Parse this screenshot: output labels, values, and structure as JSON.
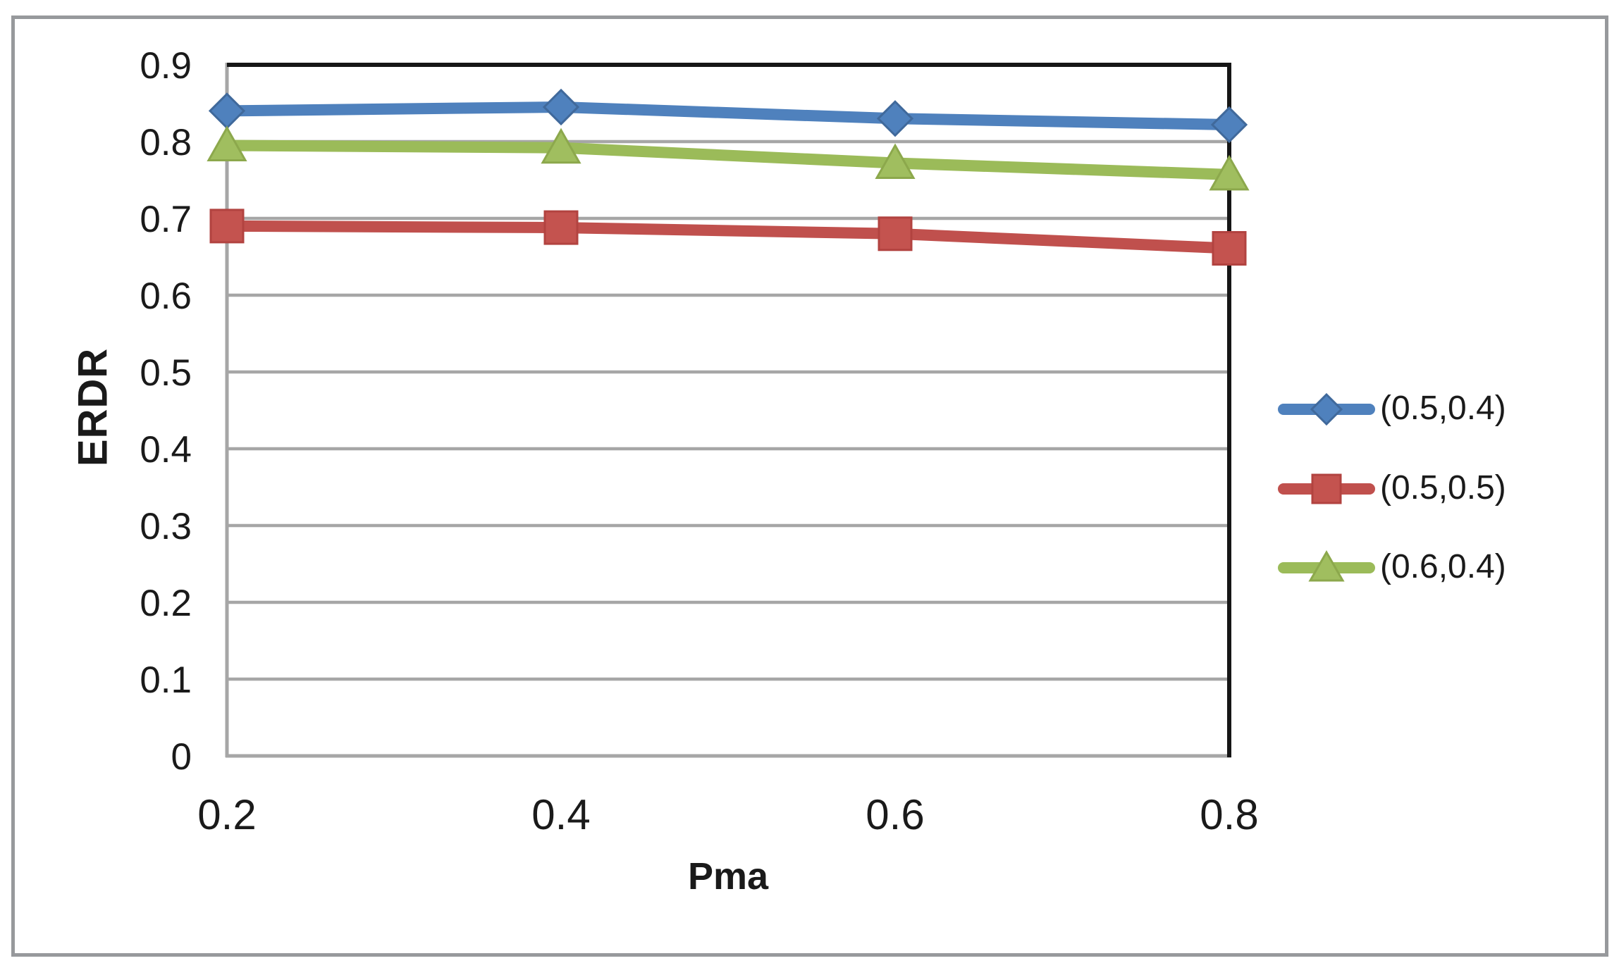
{
  "figure": {
    "background": "#ffffff",
    "frame_border_color": "#97999c"
  },
  "chart_data": {
    "type": "line",
    "title": "",
    "xlabel": "Pma",
    "ylabel": "ERDR",
    "x": [
      0.2,
      0.4,
      0.6,
      0.8
    ],
    "x_tick_labels": [
      "0.2",
      "0.4",
      "0.6",
      "0.8"
    ],
    "y_tick_labels": [
      "0",
      "0.1",
      "0.2",
      "0.3",
      "0.4",
      "0.5",
      "0.6",
      "0.7",
      "0.8",
      "0.9"
    ],
    "y_ticks": [
      0,
      0.1,
      0.2,
      0.3,
      0.4,
      0.5,
      0.6,
      0.7,
      0.8,
      0.9
    ],
    "xlim": [
      0.2,
      0.8
    ],
    "ylim": [
      0,
      0.9
    ],
    "grid": "horizontal",
    "legend_position": "right",
    "series": [
      {
        "label": "(0.5,0.4)",
        "marker": "diamond",
        "color": "#4F81BD",
        "marker_fill": "#4F81BD",
        "marker_edge": "#40699B",
        "values": [
          0.84,
          0.845,
          0.83,
          0.822
        ]
      },
      {
        "label": "(0.5,0.5)",
        "marker": "square",
        "color": "#C0504D",
        "marker_fill": "#C4534F",
        "marker_edge": "#B24340",
        "values": [
          0.69,
          0.688,
          0.68,
          0.661
        ]
      },
      {
        "label": "(0.6,0.4)",
        "marker": "triangle",
        "color": "#9BBB59",
        "marker_fill": "#A0BE5F",
        "marker_edge": "#8CA84C",
        "values": [
          0.795,
          0.792,
          0.772,
          0.757
        ]
      }
    ],
    "colors": {
      "gridline": "#A6A6A6",
      "axis_gray": "#A6A6A6",
      "plot_border_black": "#161616",
      "text": "#1a1a1a"
    }
  }
}
